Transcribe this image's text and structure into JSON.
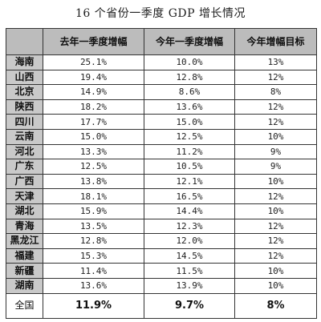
{
  "chart_data": {
    "type": "table",
    "title": "16 个省份一季度 GDP 增长情况",
    "columns": [
      "",
      "去年一季度增幅",
      "今年一季度增幅",
      "今年增幅目标"
    ],
    "rows": [
      [
        "海南",
        "25.1%",
        "10.0%",
        "13%"
      ],
      [
        "山西",
        "19.4%",
        "12.8%",
        "12%"
      ],
      [
        "北京",
        "14.9%",
        "8.6%",
        "8%"
      ],
      [
        "陕西",
        "18.2%",
        "13.6%",
        "12%"
      ],
      [
        "四川",
        "17.7%",
        "15.0%",
        "12%"
      ],
      [
        "云南",
        "15.0%",
        "12.5%",
        "10%"
      ],
      [
        "河北",
        "13.3%",
        "11.2%",
        "9%"
      ],
      [
        "广东",
        "12.5%",
        "10.5%",
        "9%"
      ],
      [
        "广西",
        "13.8%",
        "12.1%",
        "10%"
      ],
      [
        "天津",
        "18.1%",
        "16.5%",
        "12%"
      ],
      [
        "湖北",
        "15.9%",
        "14.4%",
        "10%"
      ],
      [
        "青海",
        "13.5%",
        "12.3%",
        "12%"
      ],
      [
        "黑龙江",
        "12.8%",
        "12.0%",
        "12%"
      ],
      [
        "福建",
        "15.3%",
        "14.5%",
        "12%"
      ],
      [
        "新疆",
        "11.4%",
        "11.5%",
        "10%"
      ],
      [
        "湖南",
        "13.6%",
        "13.9%",
        "10%"
      ]
    ],
    "total": [
      "全国",
      "11.9%",
      "9.7%",
      "8%"
    ],
    "series": [
      {
        "name": "去年一季度增幅",
        "values": [
          25.1,
          19.4,
          14.9,
          18.2,
          17.7,
          15.0,
          13.3,
          12.5,
          13.8,
          18.1,
          15.9,
          13.5,
          12.8,
          15.3,
          11.4,
          13.6
        ]
      },
      {
        "name": "今年一季度增幅",
        "values": [
          10.0,
          12.8,
          8.6,
          13.6,
          15.0,
          12.5,
          11.2,
          10.5,
          12.1,
          16.5,
          14.4,
          12.3,
          12.0,
          14.5,
          11.5,
          13.9
        ]
      },
      {
        "name": "今年增幅目标",
        "values": [
          13,
          12,
          8,
          12,
          12,
          10,
          9,
          9,
          10,
          12,
          10,
          12,
          12,
          12,
          10,
          10
        ]
      }
    ]
  }
}
